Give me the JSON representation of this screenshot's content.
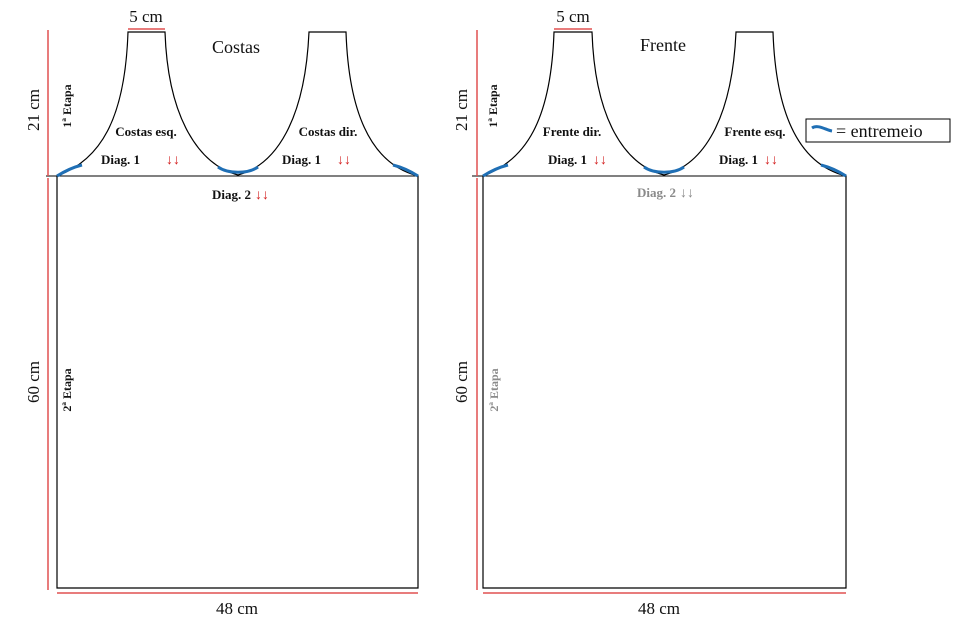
{
  "colors": {
    "outline": "#000000",
    "dimension_line": "#e05050",
    "arrow_active": "#d42020",
    "arrow_muted": "#8a8a8a",
    "text_muted": "#8a8a8a",
    "entremeio": "#1f6fb5"
  },
  "legend": {
    "icon": "curved-seam-icon",
    "label": "= entremeio"
  },
  "panels": {
    "costas": {
      "title": "Costas",
      "strap_width": "5 cm",
      "top_height": "21 cm",
      "body_height": "60 cm",
      "width": "48 cm",
      "step1": "1ª Etapa",
      "step2": "2ª Etapa",
      "left_part": "Costas esq.",
      "right_part": "Costas dir.",
      "diag1_left": "Diag. 1",
      "diag1_right": "Diag. 1",
      "diag2": "Diag. 2",
      "arrows": "↓↓",
      "step2_muted": false,
      "diag2_muted": false
    },
    "frente": {
      "title": "Frente",
      "strap_width": "5 cm",
      "top_height": "21 cm",
      "body_height": "60 cm",
      "width": "48 cm",
      "step1": "1ª Etapa",
      "step2": "2ª Etapa",
      "left_part": "Frente dir.",
      "right_part": "Frente esq.",
      "diag1_left": "Diag. 1",
      "diag1_right": "Diag. 1",
      "diag2": "Diag. 2",
      "arrows": "↓↓",
      "step2_muted": true,
      "diag2_muted": true
    }
  }
}
